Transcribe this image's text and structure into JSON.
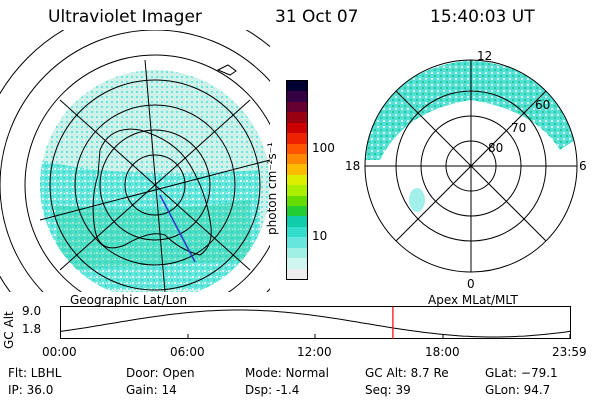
{
  "header": {
    "instrument": "Ultraviolet Imager",
    "date": "31 Oct 07",
    "time": "15:40:03 UT"
  },
  "left_panel": {
    "caption": "Geographic Lat/Lon"
  },
  "colorbar": {
    "unit_label": "photon cm⁻²s⁻¹",
    "ticks": [
      "100",
      "10"
    ],
    "colors": [
      "#000033",
      "#330044",
      "#660033",
      "#990011",
      "#cc0000",
      "#ee2200",
      "#ff5500",
      "#ff8800",
      "#ffbb00",
      "#ddee00",
      "#aaee00",
      "#66dd00",
      "#22cc33",
      "#11ccaa",
      "#33ddcc",
      "#66e6dd",
      "#a0f0e6",
      "#d0f5f0",
      "#eeeeee"
    ]
  },
  "right_panel": {
    "caption": "Apex MLat/MLT",
    "mlt_labels": {
      "top": "12",
      "left": "18",
      "right": "6",
      "bottom": "0"
    },
    "lat_labels": [
      "60",
      "70",
      "80"
    ]
  },
  "timeline": {
    "ylabel": "GC Alt",
    "yticks": [
      "9.0",
      "1.8"
    ],
    "xticks": [
      "00:00",
      "06:00",
      "12:00",
      "18:00",
      "23:59"
    ],
    "current_time": "15:40",
    "marker_color": "#ff0000"
  },
  "info": {
    "filter": "Flt: LBHL",
    "ip": "IP: 36.0",
    "door": "Door: Open",
    "gain": "Gain: 14",
    "mode": "Mode: Normal",
    "dsp": "Dsp:    -1.4",
    "gc_alt": "GC Alt: 8.7 Re",
    "seq": "Seq: 39",
    "glat": "GLat: −79.1",
    "glon": "GLon:  94.7"
  }
}
